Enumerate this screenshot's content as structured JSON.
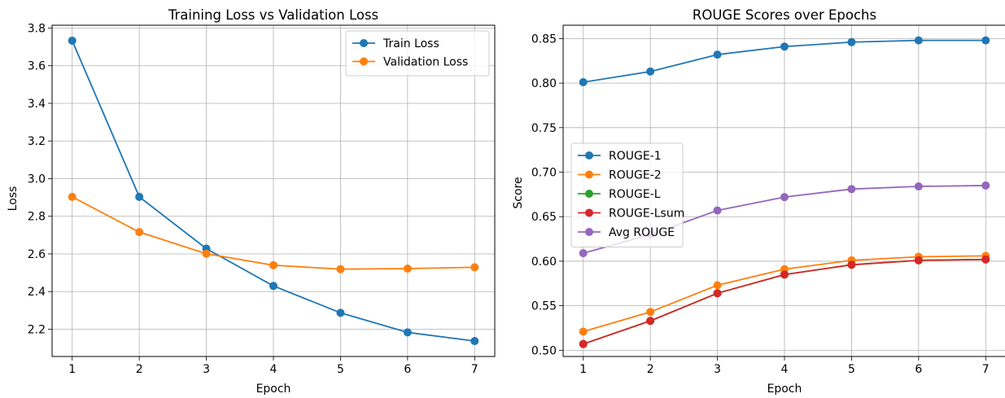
{
  "chart_data": [
    {
      "type": "line",
      "title": "Training Loss vs Validation Loss",
      "xlabel": "Epoch",
      "ylabel": "Loss",
      "x": [
        1,
        2,
        3,
        4,
        5,
        6,
        7
      ],
      "xlim": [
        0.7,
        7.3
      ],
      "ylim": [
        2.055,
        3.815
      ],
      "xticks": [
        "1",
        "2",
        "3",
        "4",
        "5",
        "6",
        "7"
      ],
      "yticks": [
        "2.2",
        "2.4",
        "2.6",
        "2.8",
        "3.0",
        "3.2",
        "3.4",
        "3.6",
        "3.8"
      ],
      "ytick_values": [
        2.2,
        2.4,
        2.6,
        2.8,
        3.0,
        3.2,
        3.4,
        3.6,
        3.8
      ],
      "grid": true,
      "legend_position": "top-right",
      "series": [
        {
          "name": "Train Loss",
          "color": "#1f77b4",
          "values": [
            3.733,
            2.903,
            2.628,
            2.43,
            2.287,
            2.183,
            2.137
          ]
        },
        {
          "name": "Validation Loss",
          "color": "#ff7f0e",
          "values": [
            2.903,
            2.716,
            2.601,
            2.54,
            2.519,
            2.522,
            2.529
          ]
        }
      ]
    },
    {
      "type": "line",
      "title": "ROUGE Scores over Epochs",
      "xlabel": "Epoch",
      "ylabel": "Score",
      "x": [
        1,
        2,
        3,
        4,
        5,
        6,
        7
      ],
      "xlim": [
        0.7,
        7.3
      ],
      "ylim": [
        0.493,
        0.865
      ],
      "xticks": [
        "1",
        "2",
        "3",
        "4",
        "5",
        "6",
        "7"
      ],
      "yticks": [
        "0.50",
        "0.55",
        "0.60",
        "0.65",
        "0.70",
        "0.75",
        "0.80",
        "0.85"
      ],
      "ytick_values": [
        0.5,
        0.55,
        0.6,
        0.65,
        0.7,
        0.75,
        0.8,
        0.85
      ],
      "grid": true,
      "legend_position": "center-left",
      "series": [
        {
          "name": "ROUGE-1",
          "color": "#1f77b4",
          "values": [
            0.801,
            0.813,
            0.832,
            0.841,
            0.846,
            0.848,
            0.848
          ]
        },
        {
          "name": "ROUGE-2",
          "color": "#ff7f0e",
          "values": [
            0.521,
            0.543,
            0.573,
            0.591,
            0.601,
            0.605,
            0.606
          ]
        },
        {
          "name": "ROUGE-L",
          "color": "#2ca02c",
          "values": [
            0.507,
            0.533,
            0.564,
            0.585,
            0.596,
            0.601,
            0.602
          ]
        },
        {
          "name": "ROUGE-Lsum",
          "color": "#d62728",
          "values": [
            0.507,
            0.533,
            0.564,
            0.585,
            0.596,
            0.601,
            0.602
          ]
        },
        {
          "name": "Avg ROUGE",
          "color": "#9467bd",
          "values": [
            0.609,
            0.63,
            0.657,
            0.672,
            0.681,
            0.684,
            0.685
          ]
        }
      ]
    }
  ]
}
